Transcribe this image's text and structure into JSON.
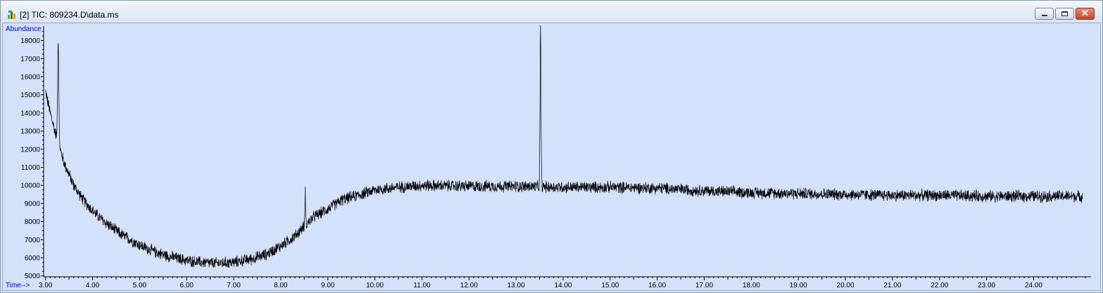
{
  "window": {
    "title": "[2] TIC: 809234.D\\data.ms",
    "icon": "chromatogram-app-icon",
    "controls": {
      "minimize": "minimize-icon",
      "maximize": "maximize-icon",
      "close": "close-icon",
      "close_glyph": "✕"
    }
  },
  "colors": {
    "plot_background": "#d3e1fa",
    "trace": "#000000",
    "axis_label": "#0000cc"
  },
  "chart_data": {
    "type": "line",
    "title": "",
    "ylabel": "Abundance",
    "xlabel": "Time-->",
    "xlim": [
      2.96,
      25.22
    ],
    "ylim": [
      4950,
      18800
    ],
    "grid": false,
    "y_ticks": [
      "5000",
      "6000",
      "7000",
      "8000",
      "9000",
      "10000",
      "11000",
      "12000",
      "13000",
      "14000",
      "15000",
      "16000",
      "17000",
      "18000"
    ],
    "x_ticks": [
      "3.00",
      "4.00",
      "5.00",
      "6.00",
      "7.00",
      "8.00",
      "9.00",
      "10.00",
      "11.00",
      "12.00",
      "13.00",
      "14.00",
      "15.00",
      "16.00",
      "17.00",
      "18.00",
      "19.00",
      "20.00",
      "21.00",
      "22.00",
      "23.00",
      "24.00"
    ],
    "series": [
      {
        "baseline_x": [
          3.0,
          3.1,
          3.2,
          3.4,
          3.6,
          3.8,
          4.0,
          4.2,
          4.4,
          4.6,
          4.8,
          5.0,
          5.3,
          5.6,
          6.0,
          6.3,
          6.6,
          7.0,
          7.4,
          7.7,
          8.0,
          8.3,
          8.5,
          8.7,
          9.0,
          9.3,
          9.7,
          10.0,
          10.5,
          11.0,
          12.0,
          13.0,
          14.0,
          15.0,
          16.0,
          17.0,
          18.0,
          19.0,
          20.0,
          21.0,
          22.0,
          23.0,
          24.0,
          25.2
        ],
        "baseline_y": [
          15200,
          14000,
          13000,
          11200,
          10000,
          9200,
          8600,
          8100,
          7700,
          7300,
          7000,
          6700,
          6350,
          6100,
          5850,
          5750,
          5700,
          5750,
          5950,
          6200,
          6650,
          7200,
          7750,
          8250,
          8700,
          9200,
          9500,
          9750,
          9900,
          10000,
          9950,
          9950,
          9900,
          9900,
          9850,
          9700,
          9600,
          9550,
          9500,
          9450,
          9450,
          9400,
          9400,
          9400
        ],
        "noise_amplitude": 330,
        "peaks": [
          {
            "x": 3.27,
            "y": 18000,
            "width": 0.018
          },
          {
            "x": 13.52,
            "y": 18700,
            "width": 0.014
          },
          {
            "x": 8.52,
            "y": 9700,
            "width": 0.01
          }
        ]
      }
    ]
  }
}
